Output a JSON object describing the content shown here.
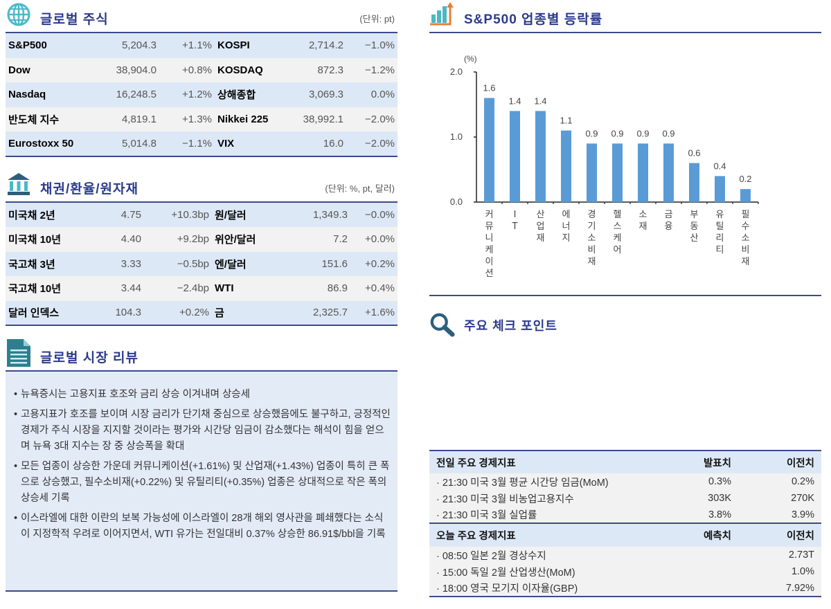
{
  "global_stocks": {
    "title": "글로벌 주식",
    "unit": "(단위: pt)",
    "rows": [
      {
        "name1": "S&P500",
        "val1": "5,204.3",
        "chg1": "+1.1%",
        "name2": "KOSPI",
        "val2": "2,714.2",
        "chg2": "−1.0%"
      },
      {
        "name1": "Dow",
        "val1": "38,904.0",
        "chg1": "+0.8%",
        "name2": "KOSDAQ",
        "val2": "872.3",
        "chg2": "−1.2%"
      },
      {
        "name1": "Nasdaq",
        "val1": "16,248.5",
        "chg1": "+1.2%",
        "name2": "상해종합",
        "val2": "3,069.3",
        "chg2": "0.0%"
      },
      {
        "name1": "반도체 지수",
        "val1": "4,819.1",
        "chg1": "+1.3%",
        "name2": "Nikkei 225",
        "val2": "38,992.1",
        "chg2": "−2.0%"
      },
      {
        "name1": "Eurostoxx 50",
        "val1": "5,014.8",
        "chg1": "−1.1%",
        "name2": "VIX",
        "val2": "16.0",
        "chg2": "−2.0%"
      }
    ]
  },
  "bonds_fx": {
    "title": "채권/환율/원자재",
    "unit": "(단위: %, pt, 달러)",
    "rows": [
      {
        "name1": "미국채 2년",
        "val1": "4.75",
        "chg1": "+10.3bp",
        "name2": "원/달러",
        "val2": "1,349.3",
        "chg2": "−0.0%"
      },
      {
        "name1": "미국채 10년",
        "val1": "4.40",
        "chg1": "+9.2bp",
        "name2": "위안/달러",
        "val2": "7.2",
        "chg2": "+0.0%"
      },
      {
        "name1": "국고채 3년",
        "val1": "3.33",
        "chg1": "−0.5bp",
        "name2": "엔/달러",
        "val2": "151.6",
        "chg2": "+0.2%"
      },
      {
        "name1": "국고채 10년",
        "val1": "3.44",
        "chg1": "−2.4bp",
        "name2": "WTI",
        "val2": "86.9",
        "chg2": "+0.4%"
      },
      {
        "name1": "달러 인덱스",
        "val1": "104.3",
        "chg1": "+0.2%",
        "name2": "금",
        "val2": "2,325.7",
        "chg2": "+1.6%"
      }
    ]
  },
  "review": {
    "title": "글로벌 시장 리뷰",
    "items": [
      "뉴욕증시는 고용지표 호조와 금리 상승 이겨내며 상승세",
      "고용지표가 호조를 보이며 시장 금리가 단기채 중심으로 상승했음에도 불구하고, 긍정적인 경제가 주식 시장을 지지할 것이라는 평가와 시간당 임금이 감소했다는 해석이 힘을 얻으며 뉴욕 3대 지수는 장 중 상승폭을 확대",
      "모든 업종이 상승한 가운데 커뮤니케이션(+1.61%) 및 산업재(+1.43%) 업종이 특히 큰 폭으로 상승했고, 필수소비재(+0.22%) 및 유틸리티(+0.35%) 업종은 상대적으로 작은 폭의 상승세 기록",
      "이스라엘에 대한 이란의 보복 가능성에 이스라엘이 28개 해외 영사관을 폐쇄했다는 소식이 지정학적 우려로 이어지면서, WTI 유가는 전일대비 0.37% 상승한 86.91$/bbl을 기록"
    ]
  },
  "sector_chart": {
    "title": "S&P500 업종별 등락률"
  },
  "chart_data": {
    "type": "bar",
    "title": "S&P500 업종별 등락률",
    "ylabel": "(%)",
    "xlabel": "",
    "ylim": [
      0.0,
      2.0
    ],
    "yticks": [
      "0.0",
      "1.0",
      "2.0"
    ],
    "categories": [
      "커뮤니케이션",
      "IT",
      "산업재",
      "에너지",
      "경기소비재",
      "헬스케어",
      "소재",
      "금융",
      "부동산",
      "유틸리티",
      "필수소비재"
    ],
    "values": [
      1.6,
      1.4,
      1.4,
      1.1,
      0.9,
      0.9,
      0.9,
      0.9,
      0.6,
      0.4,
      0.2
    ],
    "bar_color": "#5b9bd5",
    "grid": false,
    "legend": null
  },
  "checkpoint": {
    "title": "주요 체크 포인트"
  },
  "econ_prev": {
    "header": {
      "label": "전일 주요 경제지표",
      "col1": "발표치",
      "col2": "이전치"
    },
    "rows": [
      {
        "label": "· 21:30 미국 3월 평균 시간당 임금(MoM)",
        "v1": "0.3%",
        "v2": "0.2%"
      },
      {
        "label": "· 21:30 미국 3월 비농업고용지수",
        "v1": "303K",
        "v2": "270K"
      },
      {
        "label": "· 21:30 미국 3월 실업률",
        "v1": "3.8%",
        "v2": "3.9%"
      }
    ]
  },
  "econ_today": {
    "header": {
      "label": "오늘 주요 경제지표",
      "col1": "예측치",
      "col2": "이전치"
    },
    "rows": [
      {
        "label": "· 08:50 일본 2월 경상수지",
        "v1": "",
        "v2": "2.73T"
      },
      {
        "label": "· 15:00 독일 2월 산업생산(MoM)",
        "v1": "",
        "v2": "1.0%"
      },
      {
        "label": "· 18:00 영국 모기지 이자율(GBP)",
        "v1": "",
        "v2": "7.92%"
      }
    ]
  },
  "colors": {
    "accent_navy": "#2b3a8c",
    "rule": "#3a4a8c",
    "row_blue": "#dde8f6",
    "row_gray": "#f2f2f2",
    "teal_icon": "#4bb8c9",
    "dark_teal": "#2d5f7a",
    "orange": "#ed7d31"
  }
}
